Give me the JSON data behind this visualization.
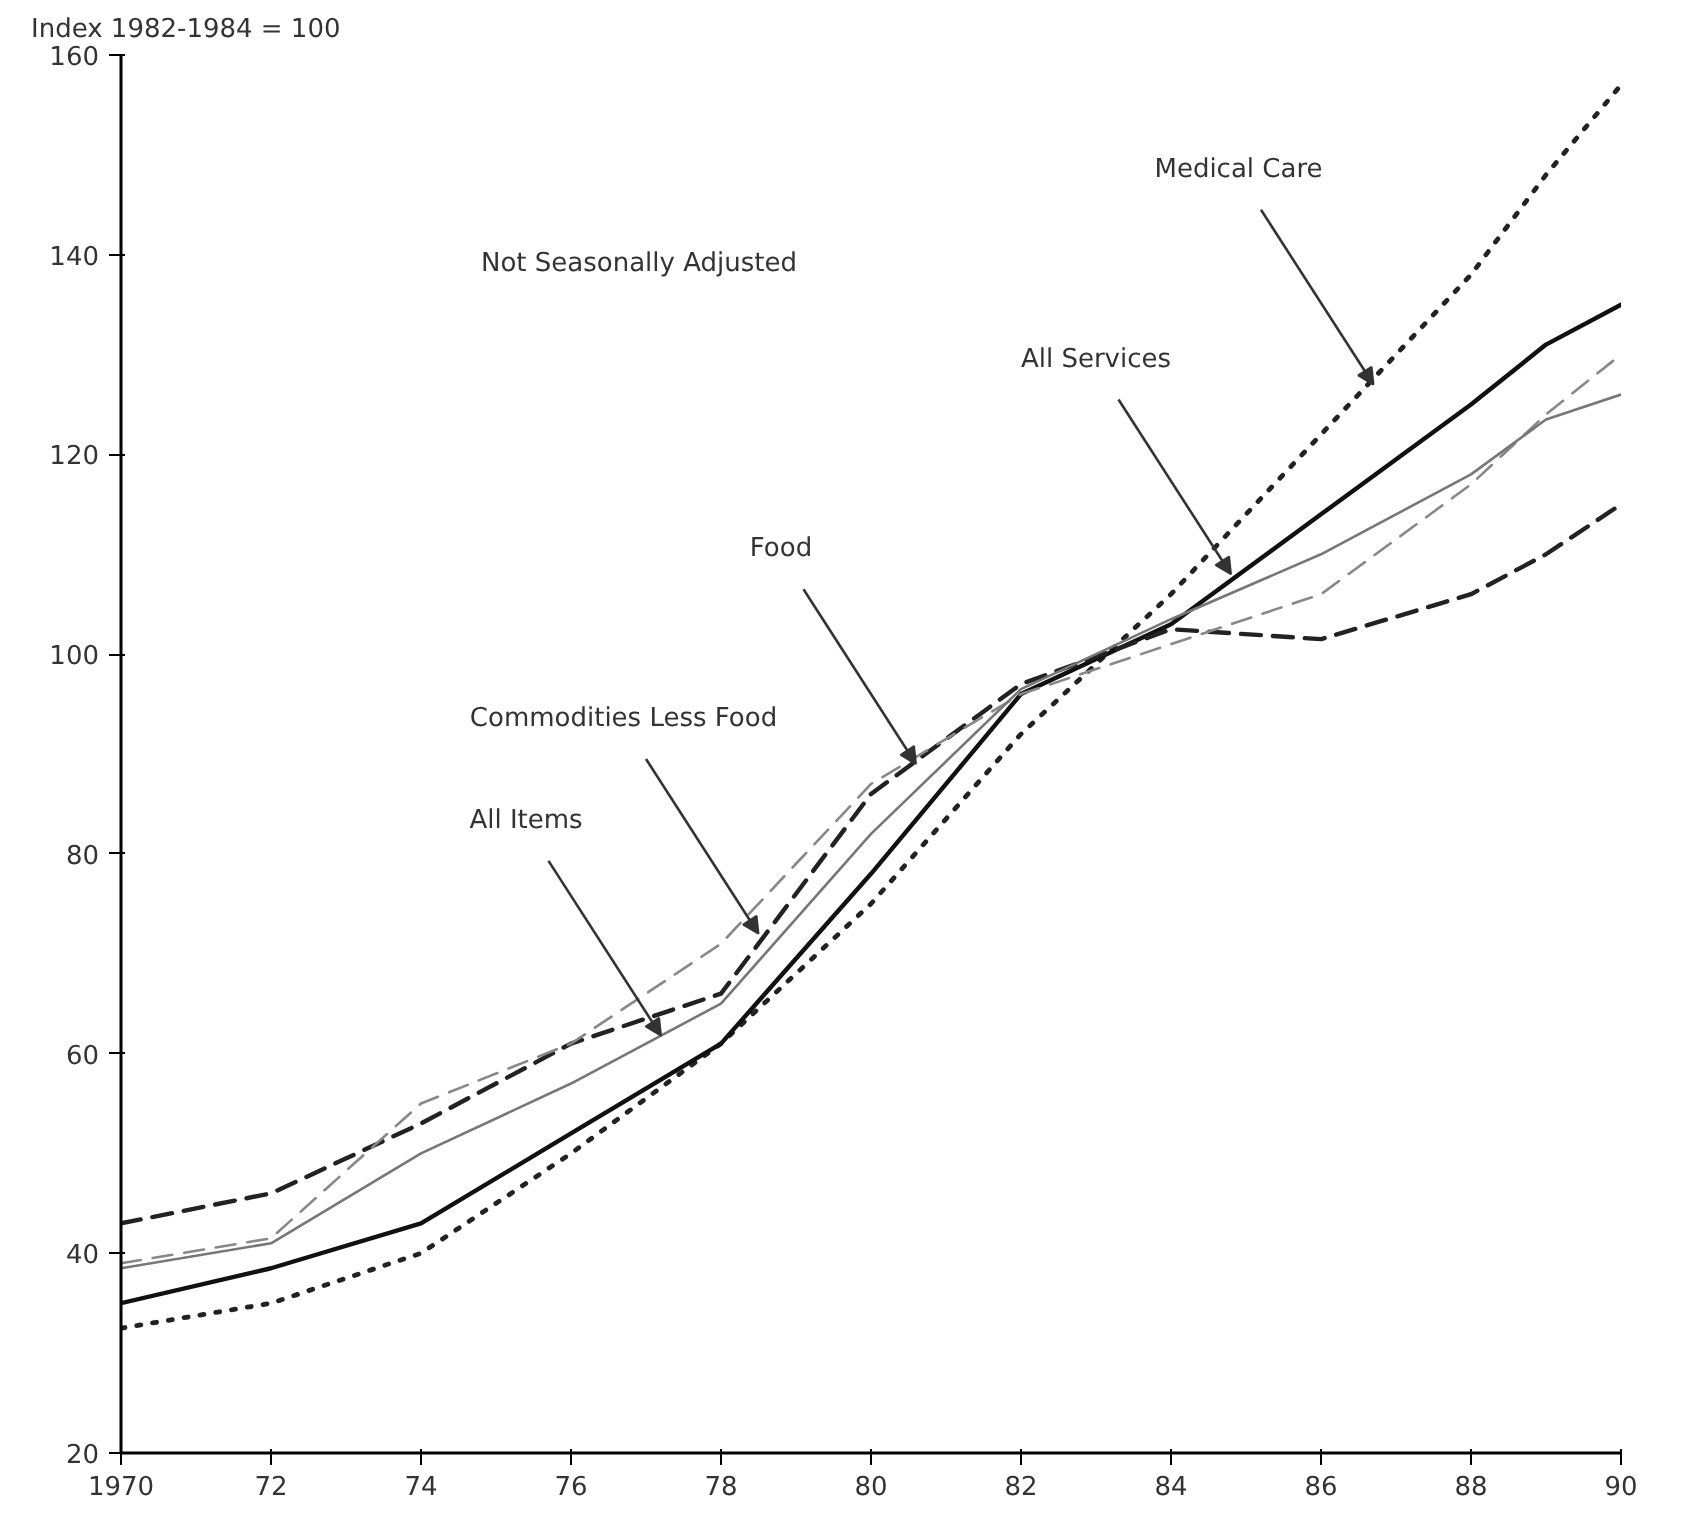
{
  "chart_data": {
    "type": "line",
    "ylabel": "Index 1982-1984 = 100",
    "x": [
      1970,
      1972,
      1974,
      1976,
      1978,
      1980,
      1982,
      1984,
      1986,
      1988,
      1989,
      1990
    ],
    "series": [
      {
        "color": "#222222",
        "line_style": "dotted",
        "values": [
          32.5,
          35,
          40,
          50,
          61,
          75,
          92,
          106,
          122,
          138,
          148,
          157
        ]
      },
      {
        "color": "#111111",
        "line_style": "solid",
        "values": [
          35,
          38.5,
          43,
          52,
          61,
          78,
          96,
          103,
          114,
          125,
          131,
          135
        ]
      },
      {
        "color": "#222222",
        "line_style": "dashed",
        "values": [
          43,
          46,
          53,
          61,
          66,
          86,
          97,
          102.5,
          101.5,
          106,
          110,
          115
        ]
      },
      {
        "color": "#888888",
        "line_style": "dashed",
        "values": [
          39,
          41.5,
          55,
          61,
          71,
          87,
          96,
          101,
          106,
          117,
          124,
          130
        ]
      },
      {
        "color": "#777777",
        "line_style": "solid",
        "values": [
          38.5,
          41,
          50,
          57,
          65,
          82,
          96.5,
          103.5,
          110,
          118,
          123.5,
          126
        ]
      }
    ],
    "annotations": [
      {
        "text": "Medical Care",
        "x": 1986.7,
        "y": 127
      },
      {
        "text": "All Services",
        "x": 1984.8,
        "y": 108
      },
      {
        "text": "Food",
        "x": 1980.6,
        "y": 89
      },
      {
        "text": "Commodities Less Food",
        "x": 1978.5,
        "y": 72
      },
      {
        "text": "All Items",
        "x": 1977.2,
        "y": 61.8
      },
      "Not Seasonally Adjusted"
    ],
    "xlim": [
      1970,
      1990
    ],
    "ylim": [
      20,
      160
    ],
    "xticks": [
      1970,
      {
        "value": 1972,
        "label": "72"
      },
      {
        "value": 1974,
        "label": "74"
      },
      {
        "value": 1976,
        "label": "76"
      },
      {
        "value": 1978,
        "label": "78"
      },
      {
        "value": 1980,
        "label": "80"
      },
      {
        "value": 1982,
        "label": "82"
      },
      {
        "value": 1984,
        "label": "84"
      },
      {
        "value": 1986,
        "label": "86"
      },
      {
        "value": 1988,
        "label": "88"
      },
      {
        "value": 1990,
        "label": "90"
      }
    ],
    "yticks": [
      20,
      40,
      60,
      80,
      100,
      120,
      140,
      160
    ],
    "grid": false
  }
}
